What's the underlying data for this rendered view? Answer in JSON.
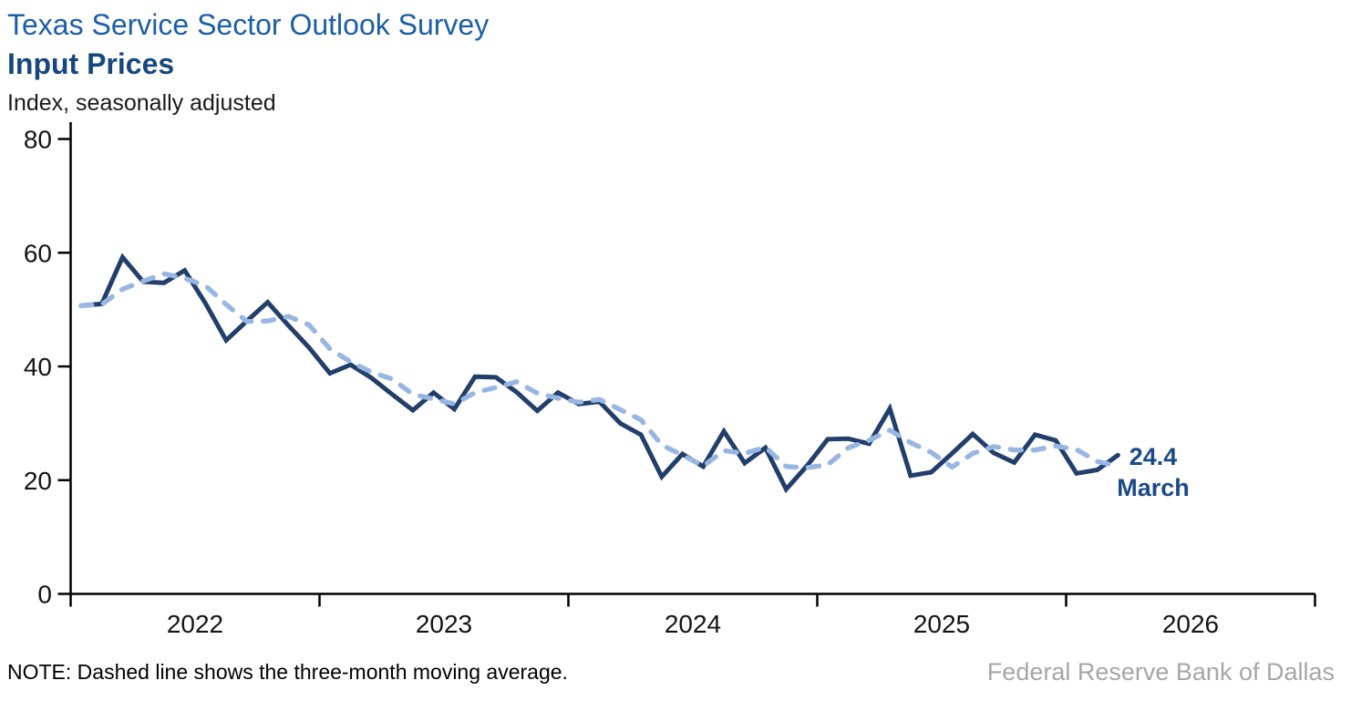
{
  "page": {
    "title": "Texas Service Sector Outlook Survey",
    "subtitle": "Input Prices",
    "axis_caption": "Index, seasonally adjusted",
    "note": "NOTE: Dashed line shows the three-month moving average.",
    "attribution": "Federal Reserve Bank of Dallas"
  },
  "annotation": {
    "value": "24.4",
    "month": "March"
  },
  "colors": {
    "title_blue": "#1B5EA8",
    "subtitle_navy": "#17477F",
    "annotation_navy": "#1B4A88",
    "solid_line": "#223E6A",
    "dashed_line": "#97B6E2",
    "axis": "#000000",
    "tick_label": "#141414",
    "attribution_gray": "#A6A6A6"
  },
  "chart_data": {
    "type": "line",
    "title": "Texas Service Sector Outlook Survey — Input Prices",
    "ylabel": "Index, seasonally adjusted",
    "xlabel": "",
    "ylim": [
      0,
      80
    ],
    "y_tick_labels": [
      "0",
      "20",
      "40",
      "60",
      "80"
    ],
    "y_tick_values": [
      0,
      20,
      40,
      60,
      80
    ],
    "x_tick_labels": [
      "2022",
      "2023",
      "2024",
      "2025",
      "2026"
    ],
    "x_range_months_on_axis": 60,
    "grid": false,
    "legend_position": "none",
    "x": [
      "Jan 2022",
      "Feb 2022",
      "Mar 2022",
      "Apr 2022",
      "May 2022",
      "Jun 2022",
      "Jul 2022",
      "Aug 2022",
      "Sep 2022",
      "Oct 2022",
      "Nov 2022",
      "Dec 2022",
      "Jan 2023",
      "Feb 2023",
      "Mar 2023",
      "Apr 2023",
      "May 2023",
      "Jun 2023",
      "Jul 2023",
      "Aug 2023",
      "Sep 2023",
      "Oct 2023",
      "Nov 2023",
      "Dec 2023",
      "Jan 2024",
      "Feb 2024",
      "Mar 2024",
      "Apr 2024",
      "May 2024",
      "Jun 2024",
      "Jul 2024",
      "Aug 2024",
      "Sep 2024",
      "Oct 2024",
      "Nov 2024",
      "Dec 2024",
      "Jan 2025",
      "Feb 2025",
      "Mar 2025",
      "Apr 2025",
      "May 2025",
      "Jun 2025",
      "Jul 2025",
      "Aug 2025",
      "Sep 2025",
      "Oct 2025",
      "Nov 2025",
      "Dec 2025",
      "Jan 2026",
      "Feb 2026",
      "Mar 2026"
    ],
    "series": [
      {
        "name": "Input Prices (monthly, seasonally adjusted)",
        "style": "solid",
        "color": "#223E6A",
        "values": [
          50.7,
          51.0,
          59.2,
          54.9,
          54.7,
          56.9,
          51.1,
          44.6,
          48.0,
          51.3,
          47.2,
          43.3,
          38.8,
          40.3,
          38.0,
          35.1,
          32.3,
          35.4,
          32.5,
          38.2,
          38.1,
          35.5,
          32.2,
          35.4,
          33.4,
          33.8,
          30.0,
          28.0,
          20.6,
          24.6,
          22.4,
          28.6,
          23.0,
          25.7,
          18.4,
          22.5,
          27.2,
          27.3,
          26.4,
          32.6,
          20.8,
          21.4,
          24.7,
          28.1,
          24.8,
          23.1,
          28.0,
          27.0,
          21.2,
          21.8,
          24.4
        ]
      },
      {
        "name": "Three-month moving average",
        "style": "dashed",
        "color": "#97B6E2",
        "values": [
          50.7,
          50.9,
          53.6,
          55.0,
          56.3,
          55.5,
          54.2,
          50.9,
          47.9,
          48.0,
          48.8,
          47.3,
          43.1,
          40.8,
          39.0,
          37.8,
          35.1,
          34.3,
          33.4,
          35.4,
          36.3,
          37.3,
          35.3,
          34.4,
          33.7,
          34.2,
          32.4,
          30.6,
          26.2,
          24.4,
          22.5,
          25.2,
          24.7,
          25.8,
          22.4,
          22.2,
          22.7,
          25.7,
          27.0,
          28.8,
          26.6,
          24.9,
          22.3,
          24.7,
          25.9,
          25.3,
          25.3,
          26.0,
          25.4,
          23.3,
          22.5
        ]
      }
    ],
    "last_point": {
      "value": 24.4,
      "month": "March",
      "year": 2026
    }
  }
}
